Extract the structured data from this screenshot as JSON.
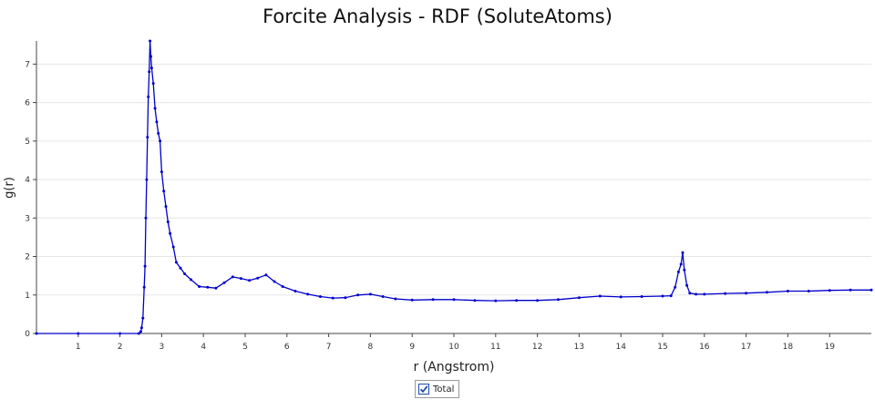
{
  "chart_data": {
    "type": "line",
    "title": "Forcite Analysis - RDF (SoluteAtoms)",
    "xlabel": "r (Angstrom)",
    "ylabel": "g(r)",
    "xlim": [
      0,
      20
    ],
    "ylim": [
      0,
      7.6
    ],
    "x_ticks": [
      1,
      2,
      3,
      4,
      5,
      6,
      7,
      8,
      9,
      10,
      11,
      12,
      13,
      14,
      15,
      16,
      17,
      18,
      19
    ],
    "y_ticks": [
      0,
      1,
      2,
      3,
      4,
      5,
      6,
      7
    ],
    "grid": true,
    "legend_position": "bottom-center",
    "series": [
      {
        "name": "Total",
        "color": "#0000cc",
        "marker": "dot",
        "points": [
          [
            0.0,
            0.0
          ],
          [
            1.0,
            0.0
          ],
          [
            2.0,
            0.0
          ],
          [
            2.45,
            0.0
          ],
          [
            2.5,
            0.05
          ],
          [
            2.52,
            0.15
          ],
          [
            2.55,
            0.4
          ],
          [
            2.58,
            1.2
          ],
          [
            2.6,
            1.75
          ],
          [
            2.62,
            3.0
          ],
          [
            2.64,
            4.0
          ],
          [
            2.66,
            5.1
          ],
          [
            2.68,
            6.15
          ],
          [
            2.7,
            6.8
          ],
          [
            2.72,
            7.6
          ],
          [
            2.74,
            7.2
          ],
          [
            2.76,
            6.9
          ],
          [
            2.8,
            6.5
          ],
          [
            2.84,
            5.85
          ],
          [
            2.88,
            5.5
          ],
          [
            2.92,
            5.2
          ],
          [
            2.96,
            5.0
          ],
          [
            3.0,
            4.2
          ],
          [
            3.05,
            3.7
          ],
          [
            3.1,
            3.3
          ],
          [
            3.15,
            2.9
          ],
          [
            3.2,
            2.6
          ],
          [
            3.28,
            2.25
          ],
          [
            3.35,
            1.85
          ],
          [
            3.45,
            1.7
          ],
          [
            3.55,
            1.55
          ],
          [
            3.7,
            1.4
          ],
          [
            3.9,
            1.22
          ],
          [
            4.1,
            1.2
          ],
          [
            4.3,
            1.18
          ],
          [
            4.5,
            1.32
          ],
          [
            4.7,
            1.47
          ],
          [
            4.9,
            1.43
          ],
          [
            5.1,
            1.38
          ],
          [
            5.3,
            1.44
          ],
          [
            5.5,
            1.52
          ],
          [
            5.7,
            1.35
          ],
          [
            5.9,
            1.22
          ],
          [
            6.2,
            1.1
          ],
          [
            6.5,
            1.02
          ],
          [
            6.8,
            0.96
          ],
          [
            7.1,
            0.92
          ],
          [
            7.4,
            0.93
          ],
          [
            7.7,
            1.0
          ],
          [
            8.0,
            1.02
          ],
          [
            8.3,
            0.96
          ],
          [
            8.6,
            0.9
          ],
          [
            9.0,
            0.87
          ],
          [
            9.5,
            0.88
          ],
          [
            10.0,
            0.88
          ],
          [
            10.5,
            0.86
          ],
          [
            11.0,
            0.85
          ],
          [
            11.5,
            0.86
          ],
          [
            12.0,
            0.86
          ],
          [
            12.5,
            0.88
          ],
          [
            13.0,
            0.93
          ],
          [
            13.5,
            0.97
          ],
          [
            14.0,
            0.95
          ],
          [
            14.5,
            0.96
          ],
          [
            15.0,
            0.97
          ],
          [
            15.2,
            0.98
          ],
          [
            15.3,
            1.2
          ],
          [
            15.38,
            1.6
          ],
          [
            15.44,
            1.8
          ],
          [
            15.48,
            2.1
          ],
          [
            15.52,
            1.65
          ],
          [
            15.58,
            1.25
          ],
          [
            15.65,
            1.05
          ],
          [
            15.8,
            1.02
          ],
          [
            16.0,
            1.02
          ],
          [
            16.5,
            1.04
          ],
          [
            17.0,
            1.05
          ],
          [
            17.5,
            1.07
          ],
          [
            18.0,
            1.1
          ],
          [
            18.5,
            1.1
          ],
          [
            19.0,
            1.12
          ],
          [
            19.5,
            1.13
          ],
          [
            20.0,
            1.13
          ]
        ]
      }
    ]
  },
  "legend": {
    "checked": true
  }
}
